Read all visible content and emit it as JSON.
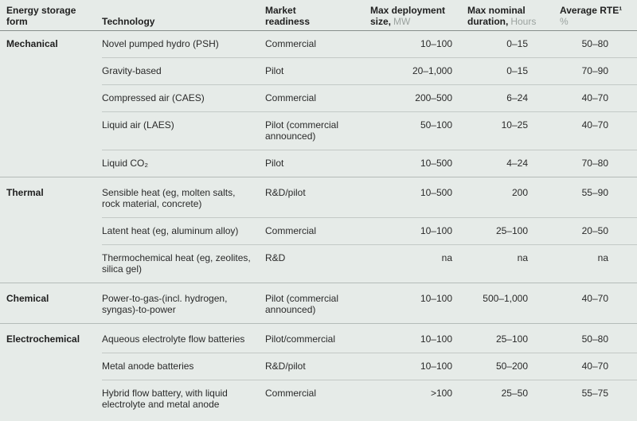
{
  "colors": {
    "background": "#e6ebe8",
    "text_dark": "#1f1f1f",
    "text_body": "#2a2a2a",
    "unit_gray": "#9ba29f",
    "header_rule": "#868e8b",
    "row_rule": "#c3c9c6",
    "section_rule": "#b4bbb8"
  },
  "table": {
    "columns": [
      {
        "line1": "Energy storage",
        "line2": "form",
        "unit": ""
      },
      {
        "line1": "",
        "line2": "Technology",
        "unit": ""
      },
      {
        "line1": "Market",
        "line2": "readiness",
        "unit": ""
      },
      {
        "line1": "Max deployment",
        "line2": "size,",
        "unit": "MW"
      },
      {
        "line1": "Max nominal",
        "line2": "duration,",
        "unit": "Hours"
      },
      {
        "line1": "Average RTE¹",
        "line2": "",
        "unit": "%"
      }
    ]
  },
  "chart_data": {
    "type": "table",
    "column_headers": [
      "Energy storage form",
      "Technology",
      "Market readiness",
      "Max deployment size, MW",
      "Max nominal duration, Hours",
      "Average RTE¹ %"
    ],
    "sections": [
      {
        "form": "Mechanical",
        "rows": [
          {
            "tech": "Novel pumped hydro (PSH)",
            "readiness": "Commercial",
            "size": "10–100",
            "duration": "0–15",
            "rte": "50–80"
          },
          {
            "tech": "Gravity-based",
            "readiness": "Pilot",
            "size": "20–1,000",
            "duration": "0–15",
            "rte": "70–90"
          },
          {
            "tech": "Compressed air (CAES)",
            "readiness": "Commercial",
            "size": "200–500",
            "duration": "6–24",
            "rte": "40–70"
          },
          {
            "tech": "Liquid air (LAES)",
            "readiness": "Pilot (commercial announced)",
            "size": "50–100",
            "duration": "10–25",
            "rte": "40–70"
          },
          {
            "tech": "Liquid CO₂",
            "readiness": "Pilot",
            "size": "10–500",
            "duration": "4–24",
            "rte": "70–80"
          }
        ]
      },
      {
        "form": "Thermal",
        "rows": [
          {
            "tech": "Sensible heat (eg, molten salts, rock material, concrete)",
            "readiness": "R&D/pilot",
            "size": "10–500",
            "duration": "200",
            "rte": "55–90"
          },
          {
            "tech": "Latent heat (eg, aluminum alloy)",
            "readiness": "Commercial",
            "size": "10–100",
            "duration": "25–100",
            "rte": "20–50"
          },
          {
            "tech": "Thermochemical heat (eg, zeolites, silica gel)",
            "readiness": "R&D",
            "size": "na",
            "duration": "na",
            "rte": "na"
          }
        ]
      },
      {
        "form": "Chemical",
        "rows": [
          {
            "tech": "Power-to-gas-(incl. hydrogen, syngas)-to-power",
            "readiness": "Pilot (commercial announced)",
            "size": "10–100",
            "duration": "500–1,000",
            "rte": "40–70"
          }
        ]
      },
      {
        "form": "Electrochemical",
        "rows": [
          {
            "tech": "Aqueous electrolyte flow batteries",
            "readiness": "Pilot/commercial",
            "size": "10–100",
            "duration": "25–100",
            "rte": "50–80"
          },
          {
            "tech": "Metal anode batteries",
            "readiness": "R&D/pilot",
            "size": "10–100",
            "duration": "50–200",
            "rte": "40–70"
          },
          {
            "tech": "Hybrid flow battery, with liquid electrolyte and metal anode",
            "readiness": "Commercial",
            "size": ">100",
            "duration": "25–50",
            "rte": "55–75"
          }
        ]
      }
    ]
  }
}
